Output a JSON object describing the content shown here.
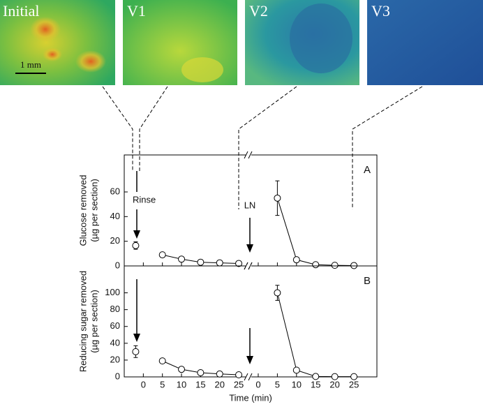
{
  "images": [
    {
      "label": "Initial"
    },
    {
      "label": "V1"
    },
    {
      "label": "V2"
    },
    {
      "label": "V3"
    }
  ],
  "scale_bar": "1 mm",
  "chart_data": [
    {
      "type": "line",
      "ylabel": [
        "Glucose removed",
        "(µg per section)"
      ],
      "panel_label": "A",
      "annotations": [
        "Rinse",
        "LN"
      ],
      "ylim": [
        0,
        90
      ],
      "yticks": [
        0,
        20,
        40,
        60
      ],
      "segments": [
        {
          "xlim": [
            -5,
            27
          ],
          "xticks": [
            0,
            5,
            10,
            15,
            20,
            25
          ],
          "series": [
            {
              "x": [
                -2
              ],
              "values": [
                16.5
              ],
              "errors": [
                3
              ]
            },
            {
              "x": [
                5,
                10,
                15,
                20,
                25
              ],
              "values": [
                9,
                5.5,
                3,
                2.5,
                2
              ]
            }
          ]
        },
        {
          "xlim": [
            -2,
            31
          ],
          "xticks": [
            0,
            5,
            10,
            15,
            20,
            25
          ],
          "series": [
            {
              "x": [
                5,
                10,
                15,
                20,
                25
              ],
              "values": [
                55,
                5,
                1,
                0.5,
                0.3
              ],
              "errors": [
                14,
                0,
                0,
                0,
                0
              ]
            }
          ]
        }
      ]
    },
    {
      "type": "line",
      "ylabel": [
        "Reducing sugar removed",
        "(µg  per section)"
      ],
      "panel_label": "B",
      "xlabel": "Time (min)",
      "ylim": [
        0,
        132
      ],
      "yticks": [
        0,
        20,
        40,
        60,
        80,
        100
      ],
      "segments": [
        {
          "xlim": [
            -5,
            27
          ],
          "xticks": [
            0,
            5,
            10,
            15,
            20,
            25
          ],
          "series": [
            {
              "x": [
                -2
              ],
              "values": [
                30
              ],
              "errors": [
                7
              ]
            },
            {
              "x": [
                5,
                10,
                15,
                20,
                25
              ],
              "values": [
                19,
                9,
                5,
                3.5,
                2.5
              ]
            }
          ]
        },
        {
          "xlim": [
            -2,
            31
          ],
          "xticks": [
            0,
            5,
            10,
            15,
            20,
            25
          ],
          "series": [
            {
              "x": [
                5,
                10,
                15,
                20,
                25
              ],
              "values": [
                100,
                8,
                0.5,
                0.3,
                0.3
              ],
              "errors": [
                9,
                0,
                0,
                0,
                0
              ]
            }
          ]
        }
      ]
    }
  ]
}
